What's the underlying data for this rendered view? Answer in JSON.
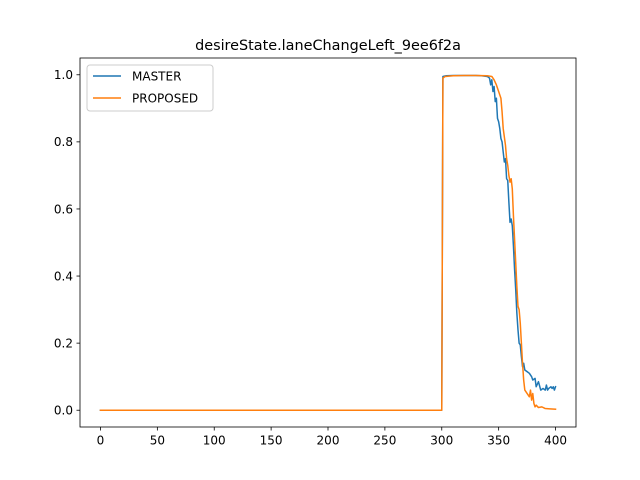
{
  "chart_data": {
    "type": "line",
    "title": "desireState.laneChangeLeft_9ee6f2a",
    "xlabel": "",
    "ylabel": "",
    "xlim": [
      -18,
      418
    ],
    "ylim": [
      -0.05,
      1.05
    ],
    "x_ticks": [
      0,
      50,
      100,
      150,
      200,
      250,
      300,
      350,
      400
    ],
    "y_ticks": [
      0.0,
      0.2,
      0.4,
      0.6,
      0.8,
      1.0
    ],
    "x_tick_labels": [
      "0",
      "50",
      "100",
      "150",
      "200",
      "250",
      "300",
      "350",
      "400"
    ],
    "y_tick_labels": [
      "0.0",
      "0.2",
      "0.4",
      "0.6",
      "0.8",
      "1.0"
    ],
    "grid": false,
    "legend": "upper-left",
    "series": [
      {
        "name": "MASTER",
        "color": "#1f77b4",
        "points": [
          [
            0,
            0.0
          ],
          [
            300,
            0.0
          ],
          [
            301,
            0.995
          ],
          [
            304,
            0.997
          ],
          [
            310,
            0.998
          ],
          [
            320,
            0.998
          ],
          [
            330,
            0.998
          ],
          [
            335,
            0.997
          ],
          [
            340,
            0.995
          ],
          [
            342,
            0.99
          ],
          [
            343,
            0.97
          ],
          [
            344,
            0.985
          ],
          [
            345,
            0.95
          ],
          [
            346,
            0.965
          ],
          [
            347,
            0.92
          ],
          [
            348,
            0.93
          ],
          [
            349,
            0.87
          ],
          [
            350,
            0.86
          ],
          [
            351,
            0.84
          ],
          [
            352,
            0.81
          ],
          [
            353,
            0.8
          ],
          [
            354,
            0.77
          ],
          [
            355,
            0.74
          ],
          [
            356,
            0.75
          ],
          [
            357,
            0.69
          ],
          [
            358,
            0.685
          ],
          [
            359,
            0.62
          ],
          [
            360,
            0.56
          ],
          [
            361,
            0.57
          ],
          [
            362,
            0.55
          ],
          [
            363,
            0.49
          ],
          [
            364,
            0.42
          ],
          [
            365,
            0.36
          ],
          [
            366,
            0.29
          ],
          [
            367,
            0.24
          ],
          [
            368,
            0.2
          ],
          [
            369,
            0.195
          ],
          [
            370,
            0.16
          ],
          [
            371,
            0.13
          ],
          [
            372,
            0.14
          ],
          [
            373,
            0.12
          ],
          [
            375,
            0.115
          ],
          [
            377,
            0.11
          ],
          [
            379,
            0.1
          ],
          [
            380,
            0.09
          ],
          [
            382,
            0.095
          ],
          [
            383,
            0.07
          ],
          [
            385,
            0.085
          ],
          [
            387,
            0.06
          ],
          [
            389,
            0.065
          ],
          [
            391,
            0.06
          ],
          [
            392,
            0.075
          ],
          [
            393,
            0.06
          ],
          [
            394,
            0.065
          ],
          [
            396,
            0.07
          ],
          [
            397,
            0.065
          ],
          [
            398,
            0.07
          ],
          [
            399,
            0.06
          ],
          [
            400,
            0.07
          ]
        ]
      },
      {
        "name": "PROPOSED",
        "color": "#ff7f0e",
        "points": [
          [
            0,
            0.0
          ],
          [
            300,
            0.0
          ],
          [
            301,
            0.99
          ],
          [
            303,
            0.995
          ],
          [
            310,
            0.997
          ],
          [
            320,
            0.998
          ],
          [
            330,
            0.998
          ],
          [
            340,
            0.997
          ],
          [
            344,
            0.995
          ],
          [
            346,
            0.985
          ],
          [
            348,
            0.97
          ],
          [
            350,
            0.95
          ],
          [
            352,
            0.93
          ],
          [
            353,
            0.89
          ],
          [
            354,
            0.84
          ],
          [
            356,
            0.79
          ],
          [
            357,
            0.75
          ],
          [
            358,
            0.73
          ],
          [
            359,
            0.7
          ],
          [
            360,
            0.68
          ],
          [
            361,
            0.69
          ],
          [
            362,
            0.66
          ],
          [
            363,
            0.58
          ],
          [
            364,
            0.51
          ],
          [
            365,
            0.44
          ],
          [
            366,
            0.37
          ],
          [
            367,
            0.31
          ],
          [
            368,
            0.3
          ],
          [
            369,
            0.26
          ],
          [
            370,
            0.2
          ],
          [
            371,
            0.14
          ],
          [
            372,
            0.09
          ],
          [
            373,
            0.06
          ],
          [
            375,
            0.05
          ],
          [
            377,
            0.04
          ],
          [
            378,
            0.06
          ],
          [
            379,
            0.03
          ],
          [
            380,
            0.05
          ],
          [
            381,
            0.02
          ],
          [
            382,
            0.01
          ],
          [
            383,
            0.015
          ],
          [
            385,
            0.008
          ],
          [
            388,
            0.01
          ],
          [
            391,
            0.005
          ],
          [
            395,
            0.004
          ],
          [
            400,
            0.003
          ]
        ]
      }
    ]
  }
}
